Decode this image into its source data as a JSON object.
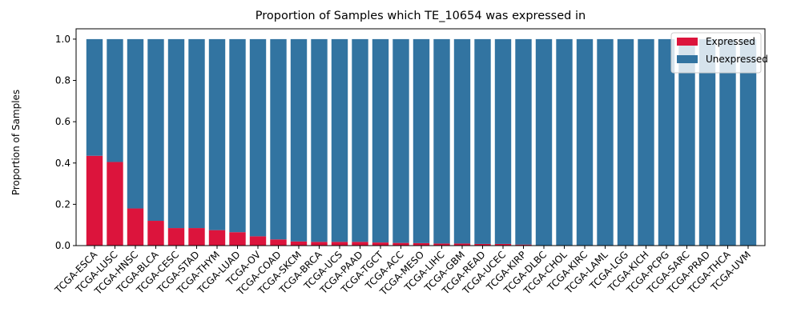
{
  "chart_data": {
    "type": "bar",
    "stacked": true,
    "title": "Proportion of Samples which TE_10654 was expressed in",
    "xlabel": "",
    "ylabel": "Proportion of Samples",
    "ylim": [
      0,
      1.05
    ],
    "yticks": [
      "0.0",
      "0.2",
      "0.4",
      "0.6",
      "0.8",
      "1.0"
    ],
    "ytick_values": [
      0,
      0.2,
      0.4,
      0.6,
      0.8,
      1.0
    ],
    "grid": false,
    "legend_position": "top-right",
    "categories": [
      "TCGA-ESCA",
      "TCGA-LUSC",
      "TCGA-HNSC",
      "TCGA-BLCA",
      "TCGA-CESC",
      "TCGA-STAD",
      "TCGA-THYM",
      "TCGA-LUAD",
      "TCGA-OV",
      "TCGA-COAD",
      "TCGA-SKCM",
      "TCGA-BRCA",
      "TCGA-UCS",
      "TCGA-PAAD",
      "TCGA-TGCT",
      "TCGA-ACC",
      "TCGA-MESO",
      "TCGA-LIHC",
      "TCGA-GBM",
      "TCGA-READ",
      "TCGA-UCEC",
      "TCGA-KIRP",
      "TCGA-DLBC",
      "TCGA-CHOL",
      "TCGA-KIRC",
      "TCGA-LAML",
      "TCGA-LGG",
      "TCGA-KICH",
      "TCGA-PCPG",
      "TCGA-SARC",
      "TCGA-PRAD",
      "TCGA-THCA",
      "TCGA-UVM"
    ],
    "series": [
      {
        "name": "Expressed",
        "color": "#dc143c",
        "values": [
          0.435,
          0.405,
          0.18,
          0.12,
          0.085,
          0.085,
          0.075,
          0.065,
          0.045,
          0.03,
          0.02,
          0.018,
          0.018,
          0.018,
          0.015,
          0.013,
          0.012,
          0.01,
          0.01,
          0.008,
          0.008,
          0.005,
          0,
          0,
          0,
          0,
          0,
          0,
          0,
          0,
          0,
          0,
          0
        ]
      },
      {
        "name": "Unexpressed",
        "color": "#3274a1",
        "values": [
          0.565,
          0.595,
          0.82,
          0.88,
          0.915,
          0.915,
          0.925,
          0.935,
          0.955,
          0.97,
          0.98,
          0.982,
          0.982,
          0.982,
          0.985,
          0.987,
          0.988,
          0.99,
          0.99,
          0.992,
          0.992,
          0.995,
          1,
          1,
          1,
          1,
          1,
          1,
          1,
          1,
          1,
          1,
          1
        ]
      }
    ]
  }
}
